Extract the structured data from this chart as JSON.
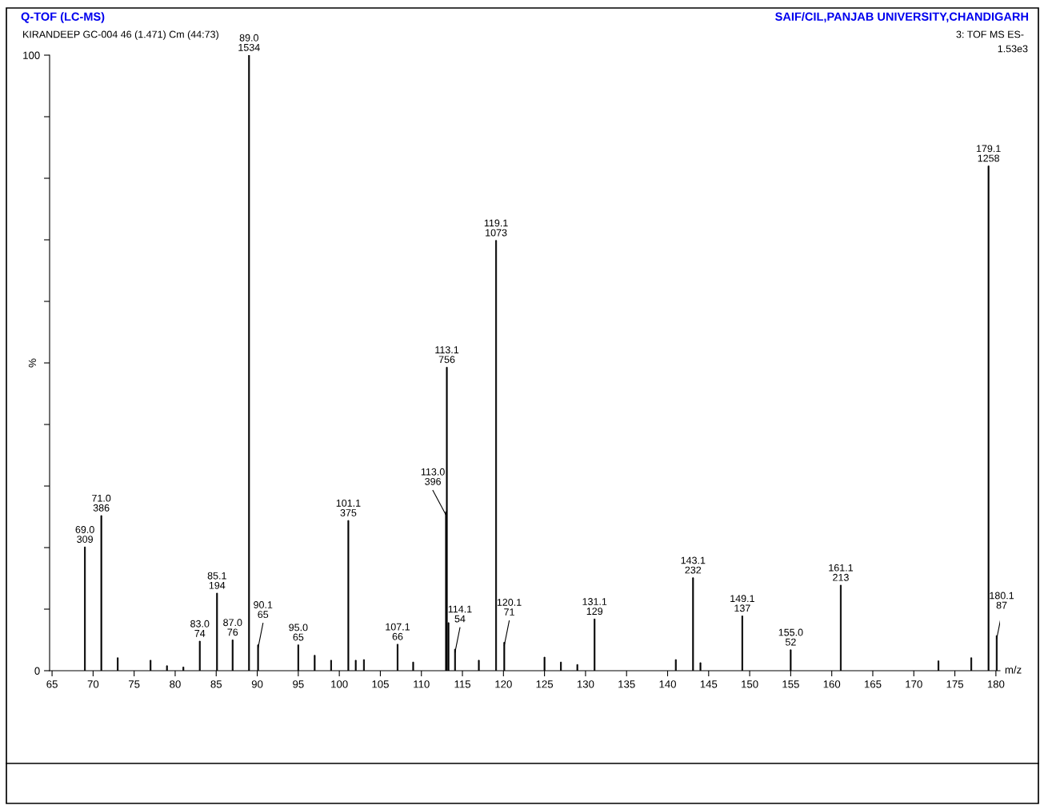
{
  "chart_data": {
    "type": "bar",
    "title": "Q-TOF (LC-MS)",
    "subtitle": "SAIF/CIL,PANJAB UNIVERSITY,CHANDIGARH",
    "annotations": [
      "KIRANDEEP GC-004 46 (1.471) Cm (44:73)",
      "3: TOF MS ES-",
      "1.53e3",
      {
        "text": "69.0\n309",
        "x": 69.0,
        "y": 20.1
      },
      {
        "text": "71.0\n386",
        "x": 71.0,
        "y": 25.2
      },
      {
        "text": "83.0\n74",
        "x": 83.0,
        "y": 4.8
      },
      {
        "text": "85.1\n194",
        "x": 85.1,
        "y": 12.6
      },
      {
        "text": "87.0\n76",
        "x": 87.0,
        "y": 5.0
      },
      {
        "text": "89.0\n1534",
        "x": 89.0,
        "y": 100
      },
      {
        "text": "90.1\n65",
        "x": 90.1,
        "y": 4.2
      },
      {
        "text": "95.0\n65",
        "x": 95.0,
        "y": 4.2
      },
      {
        "text": "101.1\n375",
        "x": 101.1,
        "y": 24.4
      },
      {
        "text": "107.1\n66",
        "x": 107.1,
        "y": 4.3
      },
      {
        "text": "113.0\n396",
        "x": 113.0,
        "y": 25.8
      },
      {
        "text": "113.1\n756",
        "x": 113.1,
        "y": 49.3
      },
      {
        "text": "114.1\n54",
        "x": 114.1,
        "y": 3.5
      },
      {
        "text": "119.1\n1073",
        "x": 119.1,
        "y": 69.9
      },
      {
        "text": "120.1\n71",
        "x": 120.1,
        "y": 4.6
      },
      {
        "text": "131.1\n129",
        "x": 131.1,
        "y": 8.4
      },
      {
        "text": "143.1\n232",
        "x": 143.1,
        "y": 15.1
      },
      {
        "text": "149.1\n137",
        "x": 149.1,
        "y": 8.9
      },
      {
        "text": "155.0\n52",
        "x": 155.0,
        "y": 3.4
      },
      {
        "text": "161.1\n213",
        "x": 161.1,
        "y": 13.9
      },
      {
        "text": "179.1\n1258",
        "x": 179.1,
        "y": 82.0
      },
      {
        "text": "180.1\n87",
        "x": 180.1,
        "y": 5.7
      }
    ],
    "xlabel": "m/z",
    "ylabel": "%",
    "color": "#000000",
    "x": [
      69.0,
      71.0,
      73.0,
      77.0,
      79.0,
      81.0,
      83.0,
      85.1,
      87.0,
      89.0,
      90.1,
      95.0,
      97.0,
      99.0,
      101.1,
      102.0,
      103.0,
      107.1,
      109.0,
      113.0,
      113.1,
      113.3,
      114.1,
      117.0,
      119.1,
      120.1,
      125.0,
      127.0,
      129.0,
      131.1,
      141.0,
      143.1,
      144.0,
      149.1,
      155.0,
      161.1,
      173.0,
      177.0,
      179.1,
      180.1
    ],
    "values": [
      20.1,
      25.2,
      2.1,
      1.7,
      0.8,
      0.6,
      4.8,
      12.6,
      5.0,
      100,
      4.2,
      4.2,
      2.5,
      1.7,
      24.4,
      1.7,
      1.8,
      4.3,
      1.4,
      25.8,
      49.3,
      7.8,
      3.5,
      1.7,
      69.9,
      4.6,
      2.2,
      1.4,
      1.0,
      8.4,
      1.8,
      15.1,
      1.3,
      8.9,
      3.4,
      13.9,
      1.6,
      2.1,
      82.0,
      5.7
    ],
    "xlim": [
      64.7,
      180.5
    ],
    "xticks": [
      65,
      70,
      75,
      80,
      85,
      90,
      95,
      100,
      105,
      110,
      115,
      120,
      125,
      130,
      135,
      140,
      145,
      150,
      155,
      160,
      165,
      170,
      175,
      180
    ],
    "ylim": [
      0,
      100
    ],
    "yticks": [
      0,
      {
        "value": 10,
        "label": null
      },
      {
        "value": 20,
        "label": null
      },
      {
        "value": 30,
        "label": null
      },
      {
        "value": 40,
        "label": null
      },
      {
        "value": 50,
        "label": null
      },
      {
        "value": 60,
        "label": null
      },
      {
        "value": 70,
        "label": null
      },
      {
        "value": 80,
        "label": null
      },
      {
        "value": 90,
        "label": null
      },
      100
    ],
    "grid": false
  }
}
